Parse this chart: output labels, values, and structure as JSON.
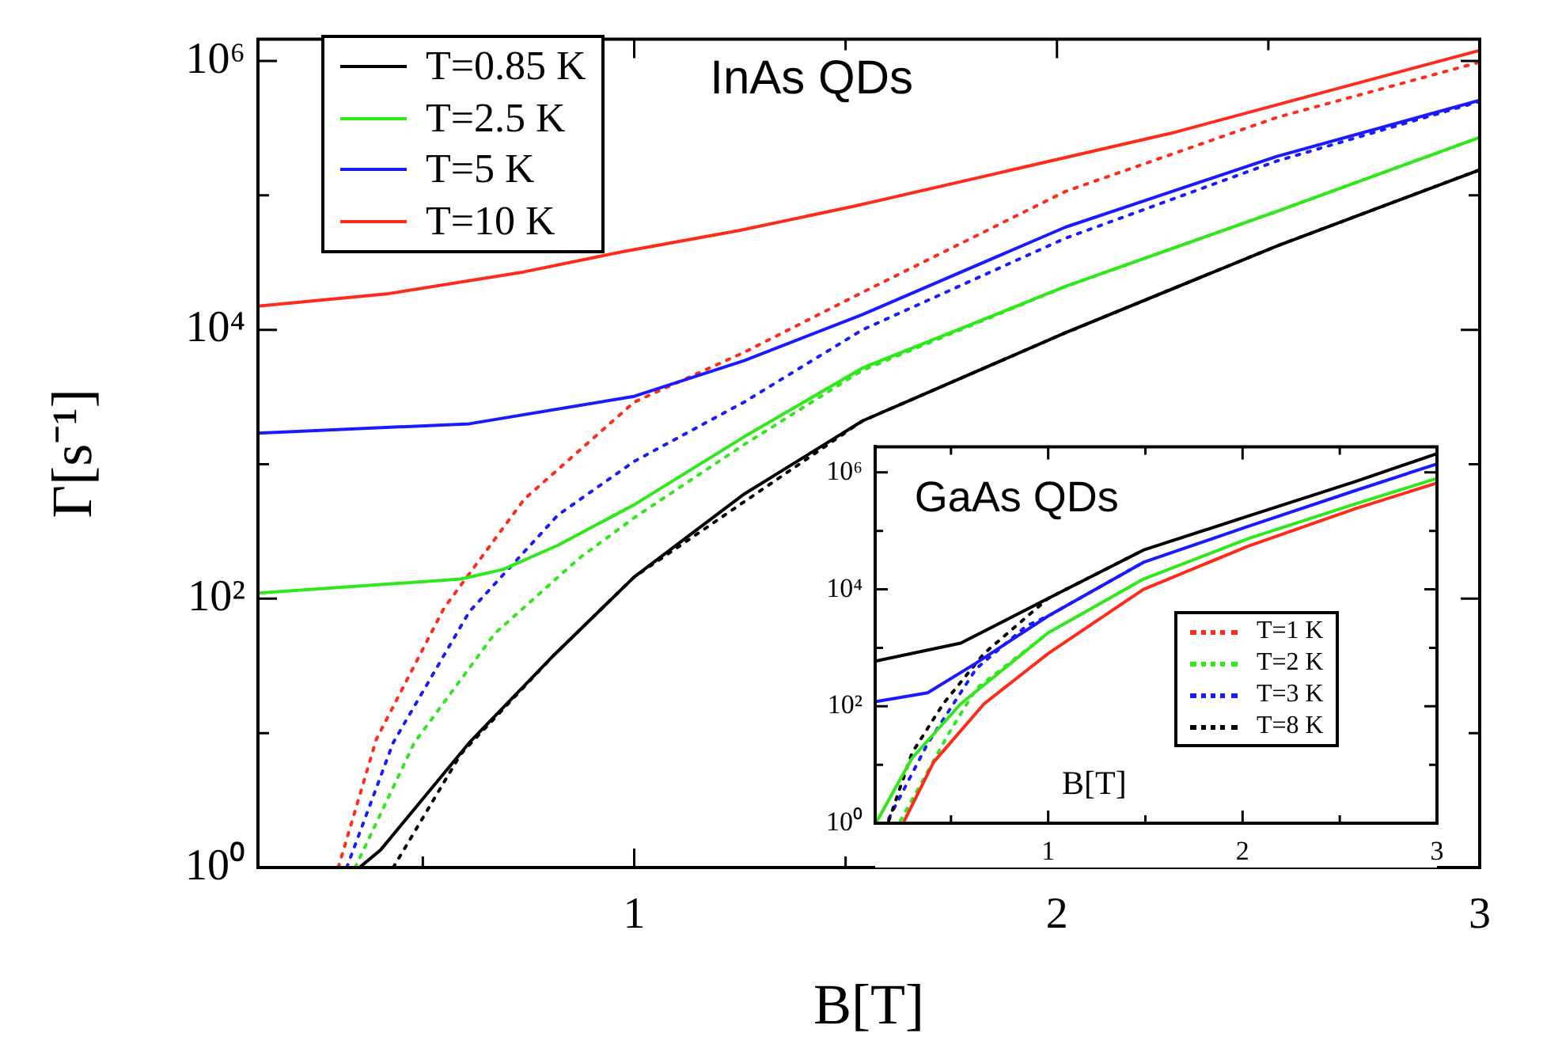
{
  "chart_data": [
    {
      "type": "line",
      "xlabel": "B[T]",
      "ylabel": "Γ[s⁻¹]",
      "annotations": [
        "InAs QDs"
      ],
      "log": "y",
      "grid": false,
      "legend": "top left",
      "xlim": [
        0.11,
        3
      ],
      "xticks": [
        {
          "value": 0.5,
          "label": null
        },
        1,
        {
          "value": 1.5,
          "label": null
        },
        2,
        {
          "value": 2.5,
          "label": null
        },
        3
      ],
      "ylim": [
        1,
        1450000
      ],
      "yticks": [
        {
          "value": 1,
          "label": "10⁰"
        },
        {
          "value": 10,
          "label": null
        },
        {
          "value": 100,
          "label": "10²"
        },
        {
          "value": 1000,
          "label": null
        },
        {
          "value": 10000,
          "label": "10⁴"
        },
        {
          "value": 100000,
          "label": null
        },
        {
          "value": 1000000,
          "label": "10⁶"
        }
      ],
      "series": [
        {
          "name": "T=0.85 K",
          "color": "#000000",
          "line_style": "solid",
          "x": [
            0.35,
            0.4,
            0.61,
            0.81,
            1.0,
            1.26,
            1.54,
            2.02,
            2.52,
            3
          ],
          "values": [
            1,
            1.35,
            8.5,
            38,
            145,
            600,
            2100,
            9500,
            42000,
            155000
          ]
        },
        {
          "name": "T=2.5 K",
          "color": "#2ee81a",
          "line_style": "solid",
          "x": [
            0.11,
            0.59,
            0.69,
            0.82,
            1.0,
            1.26,
            1.54,
            2.02,
            2.52,
            3
          ],
          "values": [
            110,
            140,
            165,
            250,
            500,
            1600,
            5200,
            21000,
            76000,
            270000
          ]
        },
        {
          "name": "T=5 K",
          "color": "#1a1aff",
          "line_style": "solid",
          "x": [
            0.11,
            0.61,
            1.0,
            1.26,
            1.54,
            2.02,
            2.52,
            3
          ],
          "values": [
            1700,
            2000,
            3200,
            5900,
            13000,
            58000,
            195000,
            510000
          ]
        },
        {
          "name": "T=10 K",
          "color": "#ff2a1a",
          "line_style": "solid",
          "x": [
            0.11,
            0.42,
            0.74,
            0.97,
            1.25,
            1.52,
            2.27,
            3
          ],
          "values": [
            15000,
            18600,
            27000,
            38000,
            55000,
            83000,
            290000,
            1200000
          ]
        },
        {
          "name": "T=1 K",
          "color": "#ff2a1a",
          "line_style": "dotted",
          "x": [
            0.3,
            0.39,
            0.55,
            0.74,
            1.0,
            1.26,
            1.54,
            2.02,
            2.52,
            3
          ],
          "values": [
            1,
            9,
            85,
            550,
            2900,
            6800,
            19000,
            107000,
            380000,
            980000
          ]
        },
        {
          "name": "T=2 K",
          "color": "#2ee81a",
          "line_style": "dotted",
          "x": [
            0.34,
            0.48,
            0.67,
            0.87,
            1.0,
            1.26,
            1.54,
            2.02,
            2.52,
            3
          ],
          "values": [
            1,
            8.5,
            55,
            200,
            400,
            1400,
            5000,
            21000,
            76000,
            270000
          ]
        },
        {
          "name": "T=3 K",
          "color": "#1a1aff",
          "line_style": "dotted",
          "x": [
            0.32,
            0.43,
            0.61,
            0.82,
            1.0,
            1.26,
            1.54,
            2.02,
            2.52,
            3
          ],
          "values": [
            1,
            8.5,
            80,
            420,
            1050,
            2900,
            10000,
            48000,
            180000,
            500000
          ]
        },
        {
          "name": "T=8 K",
          "color": "#000000",
          "line_style": "dotted",
          "x": [
            0.43,
            0.59,
            0.81,
            1.0,
            1.54,
            2.02,
            2.52,
            3
          ],
          "values": [
            1,
            7,
            38,
            145,
            2100,
            9500,
            42000,
            155000
          ]
        }
      ]
    },
    {
      "type": "line",
      "xlabel": "B[T]",
      "annotations": [
        "GaAs QDs"
      ],
      "log": "y",
      "grid": false,
      "xlim": [
        0.11,
        3
      ],
      "xticks": [
        {
          "value": 0.5,
          "label": null
        },
        1,
        {
          "value": 1.5,
          "label": null
        },
        2,
        {
          "value": 2.5,
          "label": null
        },
        3
      ],
      "ylim": [
        1,
        2750000
      ],
      "yticks": [
        {
          "value": 1,
          "label": "10⁰"
        },
        {
          "value": 10,
          "label": null
        },
        {
          "value": 100,
          "label": "10²"
        },
        {
          "value": 1000,
          "label": null
        },
        {
          "value": 10000,
          "label": "10⁴"
        },
        {
          "value": 100000,
          "label": null
        },
        {
          "value": 1000000,
          "label": "10⁶"
        }
      ],
      "series": [
        {
          "color": "#000000",
          "line_style": "solid",
          "x": [
            0.11,
            0.55,
            1.0,
            1.49,
            2.03,
            2.58,
            3
          ],
          "values": [
            590,
            1200,
            7000,
            47000,
            180000,
            700000,
            2100000
          ]
        },
        {
          "color": "#1a1aff",
          "line_style": "solid",
          "x": [
            0.11,
            0.38,
            0.63,
            1.0,
            1.49,
            2.03,
            2.58,
            3
          ],
          "values": [
            120,
            170,
            550,
            3500,
            29000,
            120000,
            490000,
            1400000
          ]
        },
        {
          "color": "#2ee81a",
          "line_style": "solid",
          "x": [
            0.12,
            0.3,
            0.55,
            1.0,
            1.49,
            2.03,
            2.58,
            3
          ],
          "values": [
            1.1,
            13,
            110,
            1800,
            15000,
            74000,
            290000,
            790000
          ]
        },
        {
          "color": "#ff2a1a",
          "line_style": "solid",
          "x": [
            0.26,
            0.41,
            0.67,
            1.0,
            1.49,
            2.03,
            2.58,
            3
          ],
          "values": [
            1.1,
            11,
            110,
            800,
            10000,
            55000,
            240000,
            660000
          ]
        },
        {
          "color": "#000000",
          "line_style": "dotted",
          "x": [
            0.18,
            0.3,
            0.46,
            0.67,
            1.0,
            1.49
          ],
          "values": [
            1.1,
            16,
            110,
            800,
            7000,
            47000
          ]
        },
        {
          "color": "#1a1aff",
          "line_style": "dotted",
          "x": [
            0.18,
            0.38,
            0.63,
            0.89,
            1.0,
            1.49
          ],
          "values": [
            1.2,
            23,
            440,
            2400,
            3500,
            29000
          ]
        },
        {
          "color": "#2ee81a",
          "line_style": "dotted",
          "x": [
            0.24,
            0.49,
            0.63,
            1.0
          ],
          "values": [
            1.1,
            35,
            200,
            1800
          ]
        }
      ]
    }
  ]
}
